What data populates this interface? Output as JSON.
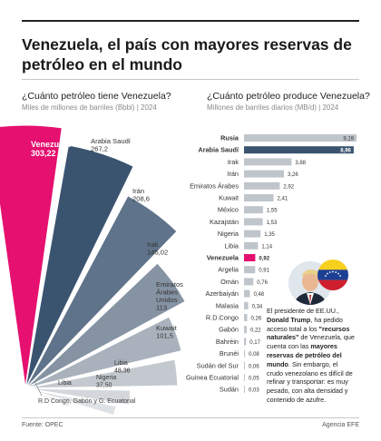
{
  "header": {
    "title": "Venezuela, el país con mayores reservas de petróleo en el mundo"
  },
  "reserves": {
    "title": "¿Cuánto petróleo tiene Venezuela?",
    "caption": "Miles de millones de barriles (Bbbl) | 2024"
  },
  "production": {
    "title": "¿Cuánto petróleo produce Venezuela?",
    "caption": "Millones de barriles diarios (MB/d) | 2024"
  },
  "note": {
    "p1": "El presidente de EE.UU.,",
    "p2": "Donald Trump",
    "p3": ", ha pedido acceso total a los ",
    "p4": "\"recursos naturales\"",
    "p5": " de Venezuela, que cuenta con las ",
    "p6": "mayores reservas de petróleo del mundo",
    "p7": ". Sin embargo, el crudo venezolano es difícil de refinar y transportar: es muy pesado, con alta densidad y contenido de azufre."
  },
  "footer": {
    "source": "Fuente: OPEC",
    "agency": "Agencia EFE"
  },
  "colors": {
    "highlight": "#e5106f",
    "dark": "#3a5470",
    "bar_gray": "#bfc5cb"
  },
  "icons": [
    "portrait-icon",
    "venezuela-flag-icon"
  ],
  "chart_data": [
    {
      "type": "pie",
      "title": "¿Cuánto petróleo tiene Venezuela?",
      "unit": "Miles de millones de barriles (Bbbl) | 2024",
      "categories": [
        "Venezuela",
        "Arabia Saudí",
        "Irán",
        "Irak",
        "Emiratos Árabes Unidos",
        "Kuwait",
        "Libia",
        "Nigeria",
        "Libia",
        "R.D Congo, Gabón y G. Ecuatorial"
      ],
      "labels": [
        "Venezuela",
        "Arabia Saudí",
        "Irán",
        "Irak",
        "Emiratos\nÁrabes\nUnidos",
        "Kuwait",
        "Libia",
        "Nigeria",
        "Libia",
        "R.D Congo, Gabón y G. Ecuatorial"
      ],
      "values": [
        303.22,
        267.2,
        208.6,
        145.02,
        113,
        101.5,
        48.36,
        37.5,
        null,
        null
      ],
      "value_labels": [
        "303,22",
        "267,2",
        "208,6",
        "145,02",
        "113",
        "101,5",
        "48,36",
        "37,50",
        "",
        ""
      ]
    },
    {
      "type": "bar",
      "orientation": "horizontal",
      "title": "¿Cuánto petróleo produce Venezuela?",
      "unit": "Millones de barriles diarios (MB/d) | 2024",
      "categories": [
        "Rusia",
        "Arabia Saudí",
        "Irak",
        "Irán",
        "Emiratos Árabes",
        "Kuwait",
        "México",
        "Kazajstán",
        "Nigeria",
        "Libia",
        "Venezuela",
        "Argelia",
        "Omán",
        "Azerbaiyán",
        "Malasia",
        "R.D.Congo",
        "Gabón",
        "Bahréin",
        "Brunéi",
        "Sudán del Sur",
        "Guinea Ecuatorial",
        "Sudán"
      ],
      "values": [
        9.19,
        8.96,
        3.88,
        3.26,
        2.92,
        2.41,
        1.55,
        1.53,
        1.35,
        1.14,
        0.92,
        0.91,
        0.76,
        0.48,
        0.34,
        0.26,
        0.22,
        0.17,
        0.08,
        0.06,
        0.05,
        0.03
      ],
      "value_labels": [
        "9,19",
        "8,96",
        "3,88",
        "3,26",
        "2,92",
        "2,41",
        "1,55",
        "1,53",
        "1,35",
        "1,14",
        "0,92",
        "0,91",
        "0,76",
        "0,48",
        "0,34",
        "0,26",
        "0,22",
        "0,17",
        "0,08",
        "0,06",
        "0,05",
        "0,03"
      ],
      "bold_categories": [
        "Rusia",
        "Arabia Saudí",
        "Venezuela"
      ]
    }
  ]
}
